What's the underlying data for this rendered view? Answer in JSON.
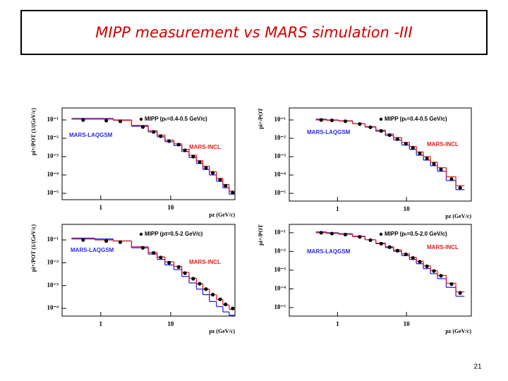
{
  "slide": {
    "title": "MIPP measurement vs MARS simulation -III",
    "page_number": "21"
  },
  "chart_data": [
    {
      "type": "line",
      "xlog": true,
      "ylog": true,
      "ylabel": "pi+/POT (1/(GeV/c)",
      "xlabel": "pz (GeV/c)",
      "x": [
        0.56,
        1.2,
        1.9,
        4,
        5.7,
        7.2,
        9.5,
        13,
        16,
        21,
        26,
        32,
        40,
        51,
        61,
        77
      ],
      "xlim": [
        0.28,
        83
      ],
      "ylim": [
        4.5e-06,
        0.45
      ],
      "xticks": [
        1,
        10
      ],
      "yticks": [
        {
          "value": 0.1,
          "label": "10⁻¹"
        },
        {
          "value": 0.01,
          "label": "10⁻²"
        },
        {
          "value": 0.001,
          "label": "10⁻³"
        },
        {
          "value": 0.0001,
          "label": "10⁻⁴"
        },
        {
          "value": 1e-05,
          "label": "10⁻⁵"
        }
      ],
      "series": [
        {
          "name": "MARS-LAQGSM",
          "color": "#2a2ae0",
          "style": "step",
          "values": [
            0.12,
            0.12,
            0.1,
            0.045,
            0.022,
            0.012,
            0.0065,
            0.004,
            0.0019,
            0.0009,
            0.00042,
            0.0002,
            0.0001,
            4.5e-05,
            2e-05,
            9e-06
          ]
        },
        {
          "name": "MARS-INCL",
          "color": "#e02020",
          "style": "step",
          "values": [
            0.11,
            0.11,
            0.095,
            0.05,
            0.026,
            0.015,
            0.008,
            0.005,
            0.0025,
            0.0012,
            0.0006,
            0.0003,
            0.00015,
            6.5e-05,
            3e-05,
            1.3e-05
          ]
        },
        {
          "name": "MIPP (pₜ=0.4-0.5 GeV/c)",
          "color": "#000000",
          "style": "points",
          "values": [
            0.1,
            0.092,
            0.084,
            0.041,
            0.022,
            0.013,
            0.007,
            0.0045,
            0.0022,
            0.001,
            0.0005,
            0.00024,
            0.00013,
            5.4e-05,
            2.6e-05,
            1.1e-05
          ]
        }
      ]
    },
    {
      "type": "line",
      "xlog": true,
      "ylog": true,
      "ylabel": "pi+/POT",
      "xlabel": "pz (GeV/c)",
      "x": [
        0.58,
        0.83,
        1.3,
        2.1,
        3,
        4.3,
        5.7,
        7.4,
        9.8,
        12.4,
        15.6,
        19.8,
        25,
        31.6,
        45,
        60
      ],
      "xlim": [
        0.2,
        87
      ],
      "ylim": [
        3.8e-06,
        0.45
      ],
      "xticks": [
        1,
        10
      ],
      "yticks": [
        {
          "value": 0.1,
          "label": "10⁻¹"
        },
        {
          "value": 0.01,
          "label": "10⁻²"
        },
        {
          "value": 0.001,
          "label": "10⁻³"
        },
        {
          "value": 0.0001,
          "label": "10⁻⁴"
        },
        {
          "value": 1e-05,
          "label": "10⁻⁵"
        }
      ],
      "series": [
        {
          "name": "MARS-LAQGSM",
          "color": "#2a2ae0",
          "style": "step",
          "values": [
            0.11,
            0.1,
            0.09,
            0.063,
            0.041,
            0.024,
            0.014,
            0.008,
            0.0043,
            0.0025,
            0.0012,
            0.00065,
            0.00032,
            0.00016,
            5e-05,
            1.6e-05
          ]
        },
        {
          "name": "MARS-INCL",
          "color": "#e02020",
          "style": "step",
          "values": [
            0.1,
            0.095,
            0.087,
            0.062,
            0.043,
            0.028,
            0.017,
            0.011,
            0.006,
            0.0036,
            0.0018,
            0.001,
            0.0005,
            0.00025,
            8e-05,
            2.6e-05
          ]
        },
        {
          "name": "MIPP (pₜ=0.4-0.5 GeV/c)",
          "color": "#000000",
          "style": "points",
          "values": [
            0.1,
            0.095,
            0.085,
            0.06,
            0.04,
            0.025,
            0.015,
            0.009,
            0.005,
            0.003,
            0.0015,
            0.0008,
            0.0004,
            0.0002,
            6e-05,
            2e-05
          ]
        }
      ]
    },
    {
      "type": "line",
      "xlog": true,
      "ylog": true,
      "ylabel": "pi+/POT (1/(GeV/c)",
      "xlabel": "pz (GeV/c)",
      "x": [
        0.56,
        1.2,
        1.9,
        4,
        5.7,
        7.2,
        9.5,
        13,
        16,
        21,
        26,
        32,
        40,
        51,
        61,
        77
      ],
      "xlim": [
        0.28,
        83
      ],
      "ylim": [
        4.6e-05,
        0.48
      ],
      "xticks": [
        1,
        10
      ],
      "yticks": [
        {
          "value": 0.1,
          "label": "10⁻¹"
        },
        {
          "value": 0.01,
          "label": "10⁻²"
        },
        {
          "value": 0.001,
          "label": "10⁻³"
        },
        {
          "value": 0.0001,
          "label": "10⁻⁴"
        }
      ],
      "series": [
        {
          "name": "MARS-LAQGSM",
          "color": "#2a2ae0",
          "style": "step",
          "values": [
            0.12,
            0.11,
            0.09,
            0.045,
            0.024,
            0.014,
            0.008,
            0.005,
            0.0025,
            0.0013,
            0.0007,
            0.0004,
            0.0002,
            0.00012,
            7e-05,
            5e-05
          ]
        },
        {
          "name": "MARS-INCL",
          "color": "#e02020",
          "style": "step",
          "values": [
            0.11,
            0.1,
            0.09,
            0.05,
            0.028,
            0.018,
            0.011,
            0.007,
            0.0038,
            0.0021,
            0.0012,
            0.0007,
            0.0004,
            0.00024,
            0.00014,
            9e-05
          ]
        },
        {
          "name": "MIPP (pt=0.5-2 GeV/c)",
          "color": "#000000",
          "style": "points",
          "values": [
            0.1,
            0.09,
            0.08,
            0.045,
            0.027,
            0.017,
            0.01,
            0.0065,
            0.0035,
            0.002,
            0.0012,
            0.0007,
            0.0004,
            0.00025,
            0.00015,
            0.0001
          ]
        }
      ]
    },
    {
      "type": "line",
      "xlog": true,
      "ylog": true,
      "ylabel": "pi+/POT",
      "xlabel": "pz (GeV/c)",
      "x": [
        0.58,
        0.83,
        1.3,
        2.1,
        3,
        4.3,
        5.7,
        7.4,
        9.8,
        12.4,
        15.6,
        19.8,
        25,
        31.6,
        45,
        60
      ],
      "xlim": [
        0.2,
        87
      ],
      "ylim": [
        3.5e-06,
        0.28
      ],
      "xticks": [
        1,
        10
      ],
      "yticks": [
        {
          "value": 0.1,
          "label": "10⁻¹"
        },
        {
          "value": 0.01,
          "label": "10⁻²"
        },
        {
          "value": 0.001,
          "label": "10⁻³"
        },
        {
          "value": 0.0001,
          "label": "10⁻⁴"
        },
        {
          "value": 1e-05,
          "label": "10⁻⁵"
        }
      ],
      "series": [
        {
          "name": "MARS-LAQGSM",
          "color": "#2a2ae0",
          "style": "step",
          "values": [
            0.11,
            0.1,
            0.088,
            0.065,
            0.042,
            0.026,
            0.016,
            0.01,
            0.006,
            0.0037,
            0.0022,
            0.0012,
            0.00065,
            0.00035,
            0.00012,
            4e-05
          ]
        },
        {
          "name": "MARS-INCL",
          "color": "#e02020",
          "style": "step",
          "values": [
            0.1,
            0.092,
            0.082,
            0.062,
            0.042,
            0.028,
            0.018,
            0.012,
            0.0075,
            0.0048,
            0.003,
            0.0017,
            0.00095,
            0.00052,
            0.0002,
            7e-05
          ]
        },
        {
          "name": "MIPP (pₜ=0.5-2.0 GeV/c)",
          "color": "#000000",
          "style": "points",
          "values": [
            0.1,
            0.09,
            0.08,
            0.06,
            0.04,
            0.026,
            0.017,
            0.011,
            0.007,
            0.0045,
            0.0028,
            0.0016,
            0.0009,
            0.0005,
            0.00018,
            6e-05
          ]
        }
      ]
    }
  ]
}
